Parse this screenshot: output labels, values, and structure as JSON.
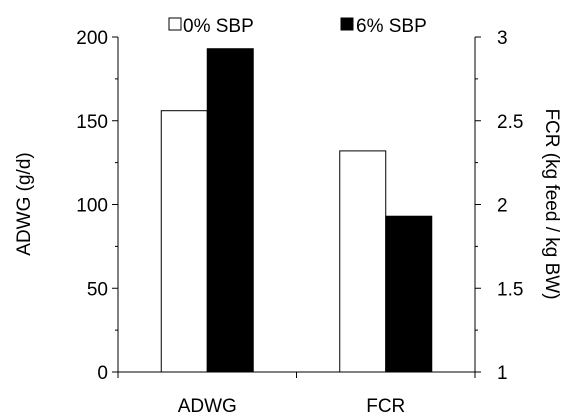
{
  "chart_data": {
    "type": "bar",
    "categories": [
      "ADWG",
      "FCR"
    ],
    "series": [
      {
        "name": "0% SBP",
        "fill": "#ffffff",
        "values": [
          156,
          2.32
        ]
      },
      {
        "name": "6% SBP",
        "fill": "#000000",
        "values": [
          193,
          1.93
        ]
      }
    ],
    "series_axis_by_category": [
      "left",
      "right"
    ],
    "left_axis": {
      "label": "ADWG (g/d)",
      "range": [
        0,
        200
      ],
      "ticks": [
        "0",
        "50",
        "100",
        "150",
        "200"
      ]
    },
    "right_axis": {
      "label": "FCR (kg feed / kg BW)",
      "range": [
        1,
        3
      ],
      "ticks": [
        "1",
        "1.5",
        "2",
        "2.5",
        "3"
      ]
    },
    "grid": false,
    "legend": "top-center"
  }
}
